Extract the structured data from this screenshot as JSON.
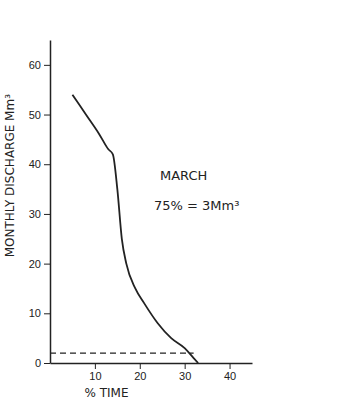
{
  "chart_data": {
    "type": "line",
    "x_label": "% TIME",
    "y_label": "MONTHLY DISCHARGE Mm³",
    "annotations": [
      "MARCH",
      "75% = 3Mm³"
    ],
    "xlim": [
      0,
      45
    ],
    "xticks": [
      10,
      20,
      30,
      40
    ],
    "ylim": [
      0,
      65
    ],
    "yticks": [
      0,
      10,
      20,
      30,
      40,
      50,
      60
    ],
    "grid": false,
    "series": [
      {
        "color": "#222222",
        "line_style": "solid",
        "x": [
          5,
          8,
          11,
          13,
          14,
          15,
          16,
          17,
          19,
          21,
          24,
          27,
          30,
          32,
          33
        ],
        "values": [
          54,
          50,
          46,
          43,
          42,
          35,
          25,
          20,
          15,
          12,
          8,
          5,
          3,
          1,
          0
        ]
      },
      {
        "color": "#222222",
        "line_style": "dashed",
        "x": [
          0,
          32
        ],
        "values": [
          2,
          2
        ]
      }
    ]
  }
}
